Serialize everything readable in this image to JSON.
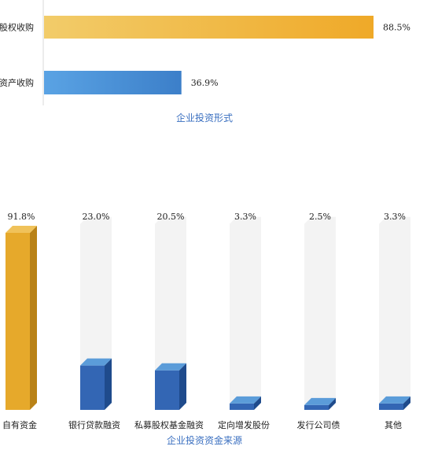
{
  "chart_data": [
    {
      "type": "bar",
      "orientation": "horizontal",
      "title": "企业投资形式",
      "categories": [
        "股权收购",
        "资产收购"
      ],
      "values": [
        88.5,
        36.9
      ],
      "value_labels": [
        "88.5%",
        "36.9%"
      ],
      "xlim": [
        0,
        100
      ],
      "colors": [
        "#F0B43A",
        "#4A90D6"
      ]
    },
    {
      "type": "bar",
      "orientation": "vertical",
      "style": "3d-cylinder-track",
      "title": "企业投资资金来源",
      "categories": [
        "自有资金",
        "银行贷款融资",
        "私募股权基金融资",
        "定向增发股份",
        "发行公司债",
        "其他"
      ],
      "values": [
        91.8,
        23.0,
        20.5,
        3.3,
        2.5,
        3.3
      ],
      "value_labels": [
        "91.8%",
        "23.0%",
        "20.5%",
        "3.3%",
        "2.5%",
        "3.3%"
      ],
      "ylim": [
        0,
        100
      ],
      "colors": {
        "highlight": "#E6A92B",
        "normal": "#2F64B0",
        "track": "#F3F3F3"
      }
    }
  ]
}
